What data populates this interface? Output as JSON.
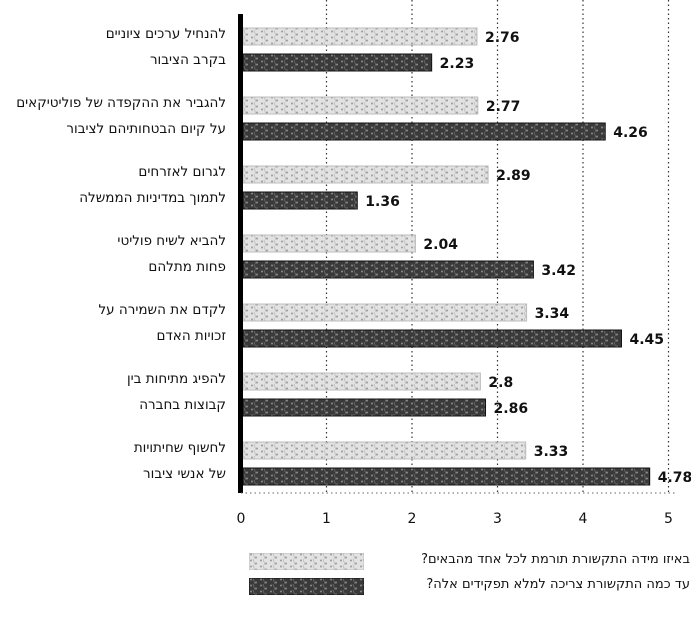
{
  "chart_data": {
    "type": "bar",
    "orientation": "horizontal",
    "categories": [
      [
        "להנחיל ערכים ציוניים",
        "בקרב הציבור"
      ],
      [
        "להגביר את ההקפדה של פוליטיקאים",
        "על קיום הבטחותיהם לציבור"
      ],
      [
        "לגרום לאזרחים",
        "לתמוך במדיניות הממשלה"
      ],
      [
        "להביא לשיח פוליטי",
        "פחות מתלהם"
      ],
      [
        "לקדם את השמירה על",
        "זכויות האדם"
      ],
      [
        "להפיג מתיחות בין",
        "קבוצות בחברה"
      ],
      [
        "לחשוף שחיתויות",
        "של אנשי ציבור"
      ]
    ],
    "series": [
      {
        "name": "באיזו מידה התקשורת תורמת לכל אחד מהבאים?",
        "values": [
          2.76,
          2.77,
          2.89,
          2.04,
          3.34,
          2.8,
          3.33
        ],
        "labels": [
          "2.76",
          "2.77",
          "2.89",
          "2.04",
          "3.34",
          "2.8",
          "3.33"
        ],
        "color": "#d6d6d6"
      },
      {
        "name": "עד כמה התקשורת צריכה למלא תפקידים אלה?",
        "values": [
          2.23,
          4.26,
          1.36,
          3.42,
          4.45,
          2.86,
          4.78
        ],
        "labels": [
          "2.23",
          "4.26",
          "1.36",
          "3.42",
          "4.45",
          "2.86",
          "4.78"
        ],
        "color": "#4a4a4a"
      }
    ],
    "xlim": [
      0,
      5
    ],
    "xticks": [
      "0",
      "1",
      "2",
      "3",
      "4",
      "5"
    ],
    "grid": "vertical dotted",
    "legend_position": "bottom"
  }
}
